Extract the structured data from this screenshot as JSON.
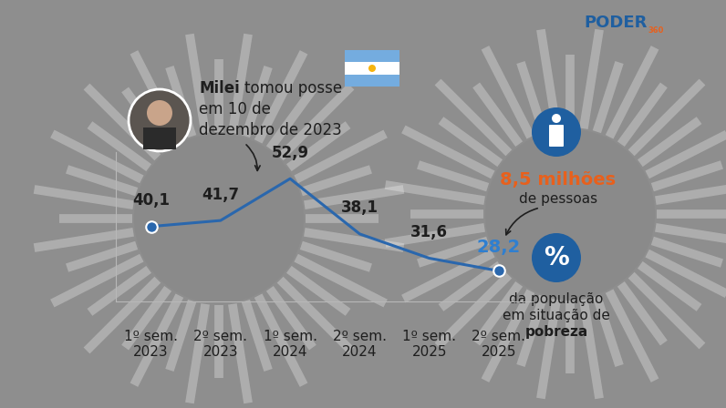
{
  "chart_data": {
    "type": "line",
    "categories": [
      "1º sem.\n2023",
      "2º sem.\n2023",
      "1º sem.\n2024",
      "2º sem.\n2024",
      "1º sem.\n2025",
      "2º sem.\n2025"
    ],
    "values": [
      40.1,
      41.7,
      52.9,
      38.1,
      31.6,
      28.2
    ],
    "value_labels": [
      "40,1",
      "41,7",
      "52,9",
      "38,1",
      "31,6",
      "28,2"
    ],
    "color": "#2a67ad",
    "marker": "o",
    "data_labels": true,
    "ylim": [
      20,
      60
    ],
    "yticks": [],
    "tick_labels": "x",
    "grid": false,
    "annotations": {
      "inauguration": {
        "bold": "Milei",
        "lines": [
          "tomou posse",
          "em 10 de",
          "dezembro de 2023"
        ]
      },
      "people": {
        "highlight": "8,5 milhões",
        "text": "de pessoas"
      },
      "caption": {
        "lines": [
          "da população",
          "em situação de"
        ],
        "bold": "pobreza"
      },
      "icon": "%",
      "source": {
        "name": "PODER",
        "suffix": "360"
      }
    }
  }
}
